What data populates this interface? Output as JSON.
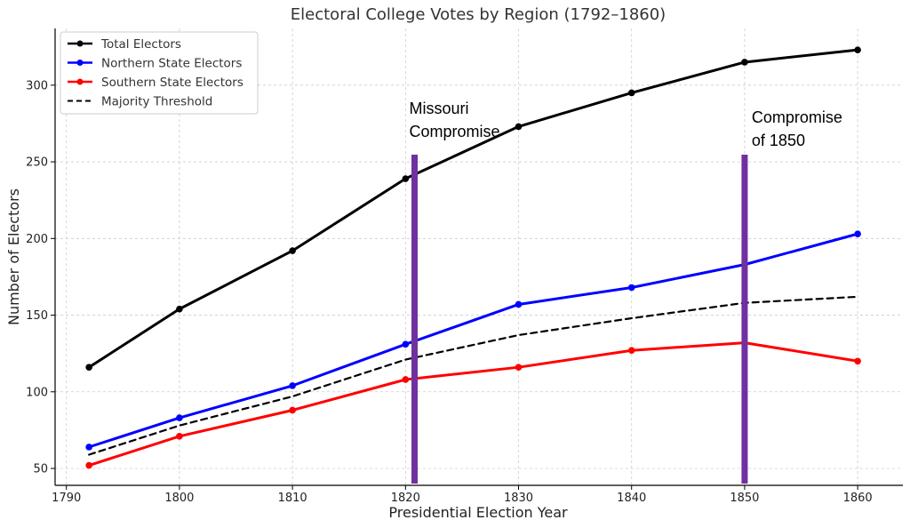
{
  "chart_data": {
    "type": "line",
    "title": "Electoral College Votes by Region (1792–1860)",
    "xlabel": "Presidential Election Year",
    "ylabel": "Number of Electors",
    "x": [
      1792,
      1800,
      1810,
      1820,
      1830,
      1840,
      1850,
      1860
    ],
    "xlim": [
      1789,
      1864
    ],
    "ylim": [
      39,
      337
    ],
    "xticks": [
      1790,
      1800,
      1810,
      1820,
      1830,
      1840,
      1850,
      1860
    ],
    "yticks": [
      50,
      100,
      150,
      200,
      250,
      300
    ],
    "grid": true,
    "legend_position": "top-left",
    "series": [
      {
        "name": "Total Electors",
        "color": "#000000",
        "style": "solid",
        "markers": true,
        "values": [
          116,
          154,
          192,
          239,
          273,
          295,
          315,
          323
        ]
      },
      {
        "name": "Northern State Electors",
        "color": "#0000ff",
        "style": "solid",
        "markers": true,
        "values": [
          64,
          83,
          104,
          131,
          157,
          168,
          183,
          203
        ]
      },
      {
        "name": "Southern State Electors",
        "color": "#ff0000",
        "style": "solid",
        "markers": true,
        "values": [
          52,
          71,
          88,
          108,
          116,
          127,
          132,
          120
        ]
      },
      {
        "name": "Majority Threshold",
        "color": "#000000",
        "style": "dashed",
        "markers": false,
        "values": [
          59,
          78,
          97,
          121,
          137,
          148,
          158,
          162
        ]
      }
    ],
    "annotations": [
      {
        "x": 1820.8,
        "label_lines": [
          "Missouri",
          "Compromise"
        ],
        "color": "#7030a0"
      },
      {
        "x": 1850,
        "label_lines": [
          "Compromise",
          "of 1850"
        ],
        "color": "#7030a0"
      }
    ]
  }
}
